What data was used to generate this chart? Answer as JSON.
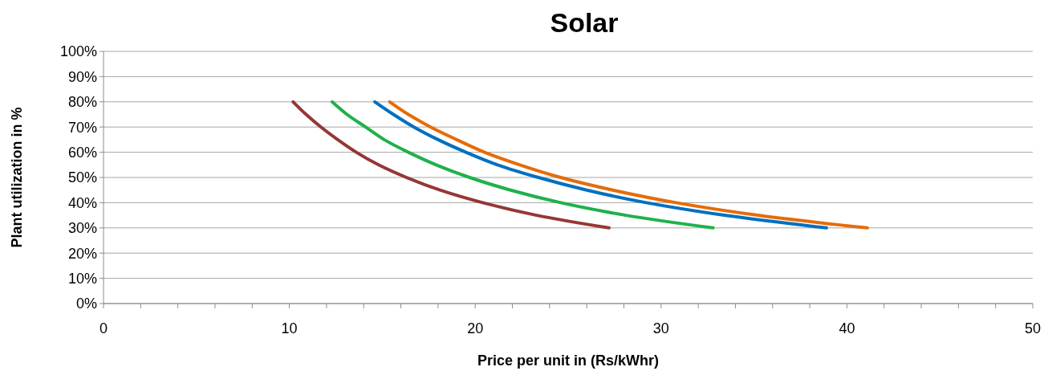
{
  "chart_data": {
    "type": "line",
    "title": "Solar",
    "xlabel": "Price per unit in (Rs/kWhr)",
    "ylabel": "Plant utilization in %",
    "xlim": [
      0,
      50
    ],
    "xticks": [
      0,
      {
        "value": 2,
        "label": null
      },
      {
        "value": 4,
        "label": null
      },
      {
        "value": 6,
        "label": null
      },
      {
        "value": 8,
        "label": null
      },
      10,
      {
        "value": 12,
        "label": null
      },
      {
        "value": 14,
        "label": null
      },
      {
        "value": 16,
        "label": null
      },
      {
        "value": 18,
        "label": null
      },
      20,
      {
        "value": 22,
        "label": null
      },
      {
        "value": 24,
        "label": null
      },
      {
        "value": 26,
        "label": null
      },
      {
        "value": 28,
        "label": null
      },
      30,
      {
        "value": 32,
        "label": null
      },
      {
        "value": 34,
        "label": null
      },
      {
        "value": 36,
        "label": null
      },
      {
        "value": 38,
        "label": null
      },
      40,
      {
        "value": 42,
        "label": null
      },
      {
        "value": 44,
        "label": null
      },
      {
        "value": 46,
        "label": null
      },
      {
        "value": 48,
        "label": null
      },
      50
    ],
    "ylim": [
      0,
      100
    ],
    "yticks": [
      {
        "value": 0,
        "label": "0%"
      },
      {
        "value": 10,
        "label": "10%"
      },
      {
        "value": 20,
        "label": "20%"
      },
      {
        "value": 30,
        "label": "30%"
      },
      {
        "value": 40,
        "label": "40%"
      },
      {
        "value": 50,
        "label": "50%"
      },
      {
        "value": 60,
        "label": "60%"
      },
      {
        "value": 70,
        "label": "70%"
      },
      {
        "value": 80,
        "label": "80%"
      },
      {
        "value": 90,
        "label": "90%"
      },
      {
        "value": 100,
        "label": "100%"
      }
    ],
    "grid": "y",
    "marker": "none",
    "line_style": "solid",
    "series": [
      {
        "color": "#953735",
        "x": [
          10.2,
          10.9,
          11.7,
          12.6,
          13.6,
          14.8,
          16.3,
          18.1,
          20.4,
          23.3,
          27.2
        ],
        "values": [
          80,
          75,
          70,
          65,
          60,
          55,
          50,
          45,
          40,
          35,
          30
        ]
      },
      {
        "color": "#1fb14a",
        "x": [
          12.3,
          13.1,
          14.1,
          15.1,
          16.4,
          17.9,
          19.7,
          21.9,
          24.6,
          28.1,
          32.8
        ],
        "values": [
          80,
          75,
          70,
          65,
          60,
          55,
          50,
          45,
          40,
          35,
          30
        ]
      },
      {
        "color": "#0070c0",
        "x": [
          14.6,
          15.6,
          16.7,
          18.0,
          19.5,
          21.2,
          23.4,
          26.0,
          29.2,
          33.4,
          38.9
        ],
        "values": [
          80,
          75,
          70,
          65,
          60,
          55,
          50,
          45,
          40,
          35,
          30
        ]
      },
      {
        "color": "#e46c0a",
        "x": [
          15.4,
          16.4,
          17.6,
          19.0,
          20.5,
          22.4,
          24.6,
          27.4,
          30.8,
          35.2,
          41.1
        ],
        "values": [
          80,
          75,
          70,
          65,
          60,
          55,
          50,
          45,
          40,
          35,
          30
        ]
      }
    ]
  }
}
